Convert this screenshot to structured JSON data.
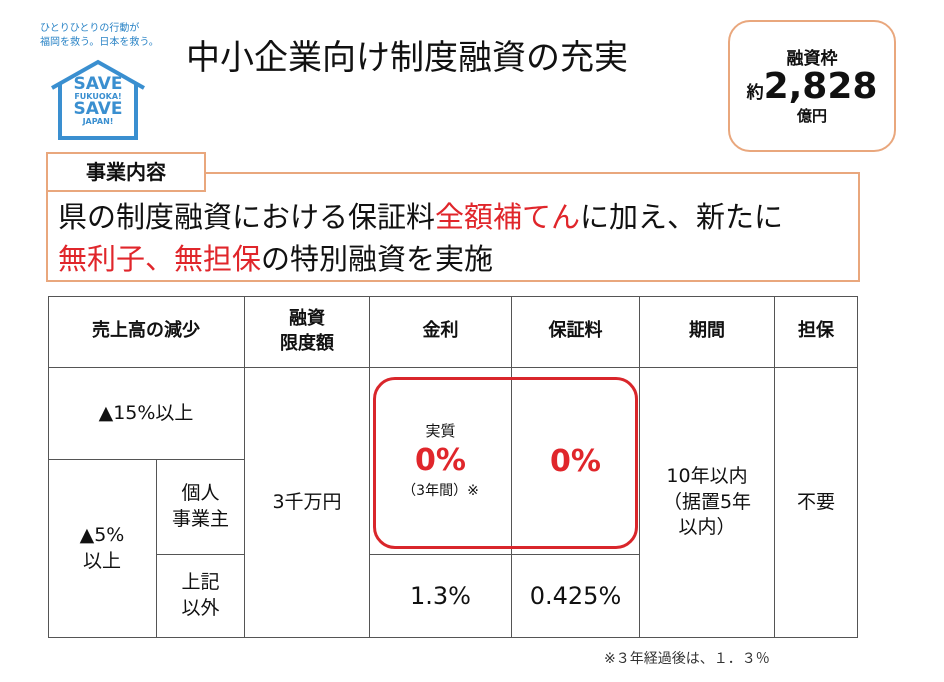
{
  "logo": {
    "tagline": [
      "ひとりひとりの行動が",
      "福岡を救う。日本を救う。"
    ],
    "lines": [
      "SAVE",
      "FUKUOKA!",
      "SAVE",
      "JAPAN!"
    ]
  },
  "header": {
    "title": "中小企業向け制度融資の充実"
  },
  "budget": {
    "label": "融資枠",
    "prefix": "約",
    "amount": "2,828",
    "unit": "億円"
  },
  "business": {
    "label": "事業内容",
    "lines": [
      [
        {
          "text": "県の制度融資における保証料",
          "highlight": false
        },
        {
          "text": "全額補てん",
          "highlight": true
        },
        {
          "text": "に加え、新たに",
          "highlight": false
        }
      ],
      [
        {
          "text": "無利子、無担保",
          "highlight": true
        },
        {
          "text": "の特別融資を実施",
          "highlight": false
        }
      ]
    ]
  },
  "table": {
    "headers": [
      "売上高の減少",
      "融資\n限度額",
      "金利",
      "保証料",
      "期間",
      "担保"
    ],
    "decline_15": "▲15%以上",
    "decline_5": "▲5%\n以上",
    "sole_proprietor": "個人\n事業主",
    "others": "上記\n以外",
    "limit": "3千万円",
    "rate_special": {
      "label": "実質",
      "value": "0%",
      "note": "（3年間）※"
    },
    "fee_special": "0%",
    "term": "10年以内\n（据置5年\n以内）",
    "collateral": "不要",
    "rate_others": "1.3%",
    "fee_others": "0.425%"
  },
  "footnote": "※３年経過後は、１．３％"
}
